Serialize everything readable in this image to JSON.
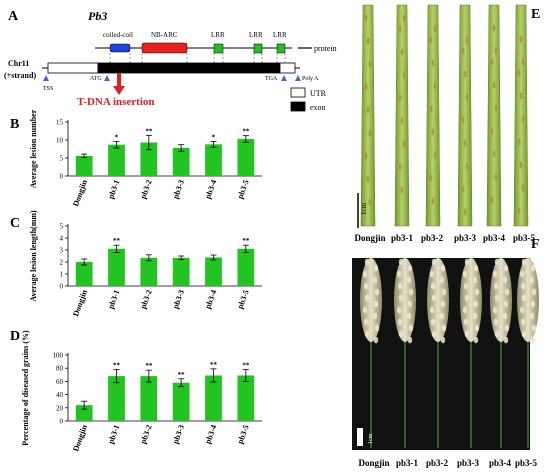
{
  "panel_labels": {
    "A": "A",
    "B": "B",
    "C": "C",
    "D": "D",
    "E": "E",
    "F": "F"
  },
  "gene_diagram": {
    "gene_name": "Pb3",
    "chromosome": "Chr11",
    "strand": "(+strand)",
    "domains": [
      {
        "label": "coiled-coil",
        "color": "#2040e0"
      },
      {
        "label": "NB-ARC",
        "color": "#e82020"
      },
      {
        "label": "LRR",
        "color": "#22c022"
      },
      {
        "label": "LRR",
        "color": "#22c022"
      },
      {
        "label": "LRR",
        "color": "#22c022"
      }
    ],
    "protein_label": "protein",
    "markers": {
      "tss": "TSS",
      "atg": "ATG",
      "tga": "TGA",
      "polya": "Poly A"
    },
    "insertion_label": "T-DNA insertion",
    "legend": [
      {
        "label": "UTR",
        "fill": "#ffffff"
      },
      {
        "label": "exon",
        "fill": "#000000"
      }
    ]
  },
  "chart_data": [
    {
      "panel": "B",
      "type": "bar",
      "categories": [
        "Dongjin",
        "pb3-1",
        "pb3-2",
        "pb3-3",
        "pb3-4",
        "pb3-5"
      ],
      "values": [
        5.6,
        8.7,
        9.3,
        7.8,
        8.8,
        10.3
      ],
      "errors": [
        0.5,
        0.9,
        2.0,
        0.9,
        0.8,
        0.9
      ],
      "significance": [
        "",
        "*",
        "**",
        "",
        "*",
        "**"
      ],
      "ylabel": "Average lesion number",
      "ylim": [
        0,
        15
      ],
      "yticks": [
        0,
        5,
        10,
        15
      ],
      "color": "#22c422"
    },
    {
      "panel": "C",
      "type": "bar",
      "categories": [
        "Dongjin",
        "pb3-1",
        "pb3-2",
        "pb3-3",
        "pb3-4",
        "pb3-5"
      ],
      "values": [
        2.0,
        3.1,
        2.35,
        2.35,
        2.38,
        3.1
      ],
      "errors": [
        0.25,
        0.3,
        0.25,
        0.15,
        0.2,
        0.3
      ],
      "significance": [
        "",
        "**",
        "",
        "",
        "",
        "**"
      ],
      "ylabel": "Average lesion length(mm)",
      "ylim": [
        0,
        5
      ],
      "yticks": [
        0,
        1,
        2,
        3,
        4,
        5
      ],
      "color": "#22c422"
    },
    {
      "panel": "D",
      "type": "bar",
      "categories": [
        "Dongjin",
        "pb3-1",
        "pb3-2",
        "pb3-3",
        "pb3-4",
        "pb3-5"
      ],
      "values": [
        24,
        68,
        68,
        58,
        69,
        69
      ],
      "errors": [
        6,
        10,
        9,
        6,
        10,
        9
      ],
      "significance": [
        "",
        "**",
        "**",
        "**",
        "**",
        "**"
      ],
      "ylabel": "Percentage of diseased grains (%)",
      "ylim": [
        0,
        100
      ],
      "yticks": [
        0,
        20,
        40,
        60,
        80,
        100
      ],
      "color": "#22c422"
    }
  ],
  "panel_E": {
    "labels": [
      "Dongjin",
      "pb3-1",
      "pb3-2",
      "pb3-3",
      "pb3-4",
      "pb3-5"
    ],
    "scale": "1cm"
  },
  "panel_F": {
    "labels": [
      "Dongjin",
      "pb3-1",
      "pb3-2",
      "pb3-3",
      "pb3-4",
      "pb3-5"
    ],
    "scale": "1cm"
  }
}
